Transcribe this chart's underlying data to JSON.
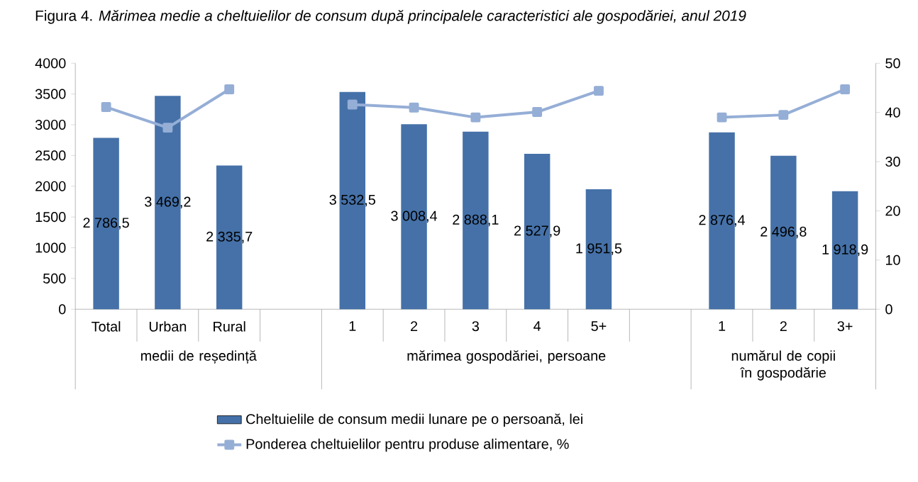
{
  "chart_data": {
    "type": "bar",
    "title": "Figura 4. *Mărimea medie a cheltuielilor de consum după principalele caracteristici ale gospodăriei, anul 2019*",
    "categories": [
      "Total",
      "Urban",
      "Rural",
      null,
      "1",
      "2",
      "3",
      "4",
      "5+",
      null,
      "1",
      "2",
      "3+"
    ],
    "series": [
      {
        "name": "Cheltuielile de consum medii lunare pe o persoană, lei",
        "color": "#4571a8",
        "values": [
          2786.5,
          3469.2,
          2335.7,
          null,
          3532.5,
          3008.4,
          2888.1,
          2527.9,
          1951.5,
          null,
          2876.4,
          2496.8,
          1918.9
        ],
        "value_labels": [
          "2 786,5",
          "3 469,2",
          "2 335,7",
          null,
          "3 532,5",
          "3 008,4",
          "2 888,1",
          "2 527,9",
          "1 951,5",
          null,
          "2 876,4",
          "2 496,8",
          "1 918,9"
        ]
      },
      {
        "name": "Ponderea cheltuielilor pentru produse alimentare, %",
        "type": "line",
        "axis": "y2",
        "color": "#95aed6",
        "marker": "square",
        "line_style": "solid",
        "values": [
          41.1,
          36.9,
          44.7,
          null,
          41.6,
          41.0,
          39.0,
          40.1,
          44.4,
          null,
          39.0,
          39.5,
          44.7
        ]
      }
    ],
    "annotations": [
      "medii de reședință",
      "mărimea gospodăriei, persoane",
      "numărul de copii în gospodărie"
    ],
    "ylim": [
      0,
      4000
    ],
    "yticks": [
      0,
      500,
      1000,
      1500,
      2000,
      2500,
      3000,
      3500,
      4000
    ],
    "y2lim": [
      0,
      50
    ],
    "y2ticks": [
      0,
      10,
      20,
      30,
      40,
      50
    ],
    "legend": "bottom"
  }
}
